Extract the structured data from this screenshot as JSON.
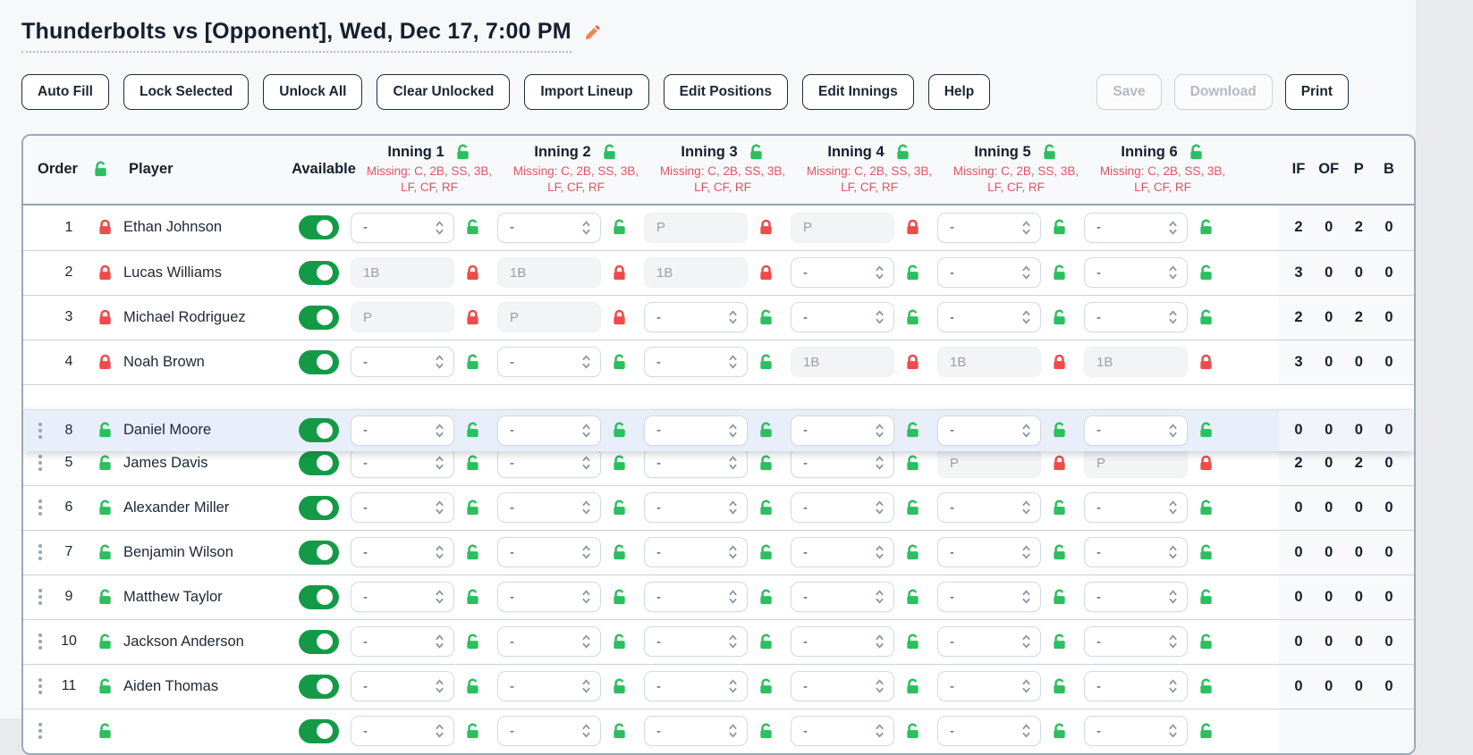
{
  "page": {
    "title": "Thunderbolts vs [Opponent], Wed, Dec 17, 7:00 PM"
  },
  "toolbar": {
    "left_buttons": [
      {
        "name": "auto-fill-button",
        "label": "Auto Fill"
      },
      {
        "name": "lock-selected-button",
        "label": "Lock Selected"
      },
      {
        "name": "unlock-all-button",
        "label": "Unlock All"
      },
      {
        "name": "clear-unlocked-button",
        "label": "Clear Unlocked"
      },
      {
        "name": "import-lineup-button",
        "label": "Import Lineup"
      },
      {
        "name": "edit-positions-button",
        "label": "Edit Positions"
      },
      {
        "name": "edit-innings-button",
        "label": "Edit Innings"
      },
      {
        "name": "help-button",
        "label": "Help"
      }
    ],
    "right_buttons": [
      {
        "name": "save-button",
        "label": "Save",
        "disabled": true
      },
      {
        "name": "download-button",
        "label": "Download",
        "disabled": true
      },
      {
        "name": "print-button",
        "label": "Print",
        "disabled": false
      }
    ]
  },
  "table": {
    "header": {
      "order": "Order",
      "player": "Player",
      "available": "Available",
      "stat_columns": [
        "IF",
        "OF",
        "P",
        "B"
      ],
      "innings": [
        {
          "label": "Inning 1",
          "missing": "Missing: C, 2B, SS, 3B,\nLF, CF, RF"
        },
        {
          "label": "Inning 2",
          "missing": "Missing: C, 2B, SS, 3B,\nLF, CF, RF"
        },
        {
          "label": "Inning 3",
          "missing": "Missing: C, 2B, SS, 3B,\nLF, CF, RF"
        },
        {
          "label": "Inning 4",
          "missing": "Missing: C, 2B, SS, 3B,\nLF, CF, RF"
        },
        {
          "label": "Inning 5",
          "missing": "Missing: C, 2B, SS, 3B,\nLF, CF, RF"
        },
        {
          "label": "Inning 6",
          "missing": "Missing: C, 2B, SS, 3B,\nLF, CF, RF"
        }
      ]
    },
    "rows": [
      {
        "order": "1",
        "name": "Ethan Johnson",
        "row_locked": true,
        "has_handle": false,
        "available": true,
        "innings": [
          {
            "type": "select",
            "value": "-",
            "locked": false
          },
          {
            "type": "select",
            "value": "-",
            "locked": false
          },
          {
            "type": "input",
            "value": "P",
            "locked": true
          },
          {
            "type": "input",
            "value": "P",
            "locked": true
          },
          {
            "type": "select",
            "value": "-",
            "locked": false
          },
          {
            "type": "select",
            "value": "-",
            "locked": false
          }
        ],
        "stats": [
          "2",
          "0",
          "2",
          "0"
        ]
      },
      {
        "order": "2",
        "name": "Lucas Williams",
        "row_locked": true,
        "has_handle": false,
        "available": true,
        "innings": [
          {
            "type": "input",
            "value": "1B",
            "locked": true
          },
          {
            "type": "input",
            "value": "1B",
            "locked": true
          },
          {
            "type": "input",
            "value": "1B",
            "locked": true
          },
          {
            "type": "select",
            "value": "-",
            "locked": false
          },
          {
            "type": "select",
            "value": "-",
            "locked": false
          },
          {
            "type": "select",
            "value": "-",
            "locked": false
          }
        ],
        "stats": [
          "3",
          "0",
          "0",
          "0"
        ]
      },
      {
        "order": "3",
        "name": "Michael Rodriguez",
        "row_locked": true,
        "has_handle": false,
        "available": true,
        "innings": [
          {
            "type": "input",
            "value": "P",
            "locked": true
          },
          {
            "type": "input",
            "value": "P",
            "locked": true
          },
          {
            "type": "select",
            "value": "-",
            "locked": false
          },
          {
            "type": "select",
            "value": "-",
            "locked": false
          },
          {
            "type": "select",
            "value": "-",
            "locked": false
          },
          {
            "type": "select",
            "value": "-",
            "locked": false
          }
        ],
        "stats": [
          "2",
          "0",
          "2",
          "0"
        ]
      },
      {
        "order": "4",
        "name": "Noah Brown",
        "row_locked": true,
        "has_handle": false,
        "available": true,
        "innings": [
          {
            "type": "select",
            "value": "-",
            "locked": false
          },
          {
            "type": "select",
            "value": "-",
            "locked": false
          },
          {
            "type": "select",
            "value": "-",
            "locked": false
          },
          {
            "type": "input",
            "value": "1B",
            "locked": true
          },
          {
            "type": "input",
            "value": "1B",
            "locked": true
          },
          {
            "type": "input",
            "value": "1B",
            "locked": true
          }
        ],
        "stats": [
          "3",
          "0",
          "0",
          "0"
        ]
      },
      {
        "order": "8",
        "name": "Daniel Moore",
        "row_locked": false,
        "has_handle": true,
        "available": true,
        "gap_before": true,
        "dragging": true,
        "innings": [
          {
            "type": "select",
            "value": "-",
            "locked": false
          },
          {
            "type": "select",
            "value": "-",
            "locked": false
          },
          {
            "type": "select",
            "value": "-",
            "locked": false
          },
          {
            "type": "select",
            "value": "-",
            "locked": false
          },
          {
            "type": "select",
            "value": "-",
            "locked": false
          },
          {
            "type": "select",
            "value": "-",
            "locked": false
          }
        ],
        "stats": [
          "0",
          "0",
          "0",
          "0"
        ]
      },
      {
        "order": "5",
        "name": "James Davis",
        "row_locked": false,
        "has_handle": true,
        "available": true,
        "innings": [
          {
            "type": "select",
            "value": "-",
            "locked": false
          },
          {
            "type": "select",
            "value": "-",
            "locked": false
          },
          {
            "type": "select",
            "value": "-",
            "locked": false
          },
          {
            "type": "select",
            "value": "-",
            "locked": false
          },
          {
            "type": "input",
            "value": "P",
            "locked": true
          },
          {
            "type": "input",
            "value": "P",
            "locked": true
          }
        ],
        "stats": [
          "2",
          "0",
          "2",
          "0"
        ]
      },
      {
        "order": "6",
        "name": "Alexander Miller",
        "row_locked": false,
        "has_handle": true,
        "available": true,
        "innings": [
          {
            "type": "select",
            "value": "-",
            "locked": false
          },
          {
            "type": "select",
            "value": "-",
            "locked": false
          },
          {
            "type": "select",
            "value": "-",
            "locked": false
          },
          {
            "type": "select",
            "value": "-",
            "locked": false
          },
          {
            "type": "select",
            "value": "-",
            "locked": false
          },
          {
            "type": "select",
            "value": "-",
            "locked": false
          }
        ],
        "stats": [
          "0",
          "0",
          "0",
          "0"
        ]
      },
      {
        "order": "7",
        "name": "Benjamin Wilson",
        "row_locked": false,
        "has_handle": true,
        "available": true,
        "innings": [
          {
            "type": "select",
            "value": "-",
            "locked": false
          },
          {
            "type": "select",
            "value": "-",
            "locked": false
          },
          {
            "type": "select",
            "value": "-",
            "locked": false
          },
          {
            "type": "select",
            "value": "-",
            "locked": false
          },
          {
            "type": "select",
            "value": "-",
            "locked": false
          },
          {
            "type": "select",
            "value": "-",
            "locked": false
          }
        ],
        "stats": [
          "0",
          "0",
          "0",
          "0"
        ]
      },
      {
        "order": "9",
        "name": "Matthew Taylor",
        "row_locked": false,
        "has_handle": true,
        "available": true,
        "innings": [
          {
            "type": "select",
            "value": "-",
            "locked": false
          },
          {
            "type": "select",
            "value": "-",
            "locked": false
          },
          {
            "type": "select",
            "value": "-",
            "locked": false
          },
          {
            "type": "select",
            "value": "-",
            "locked": false
          },
          {
            "type": "select",
            "value": "-",
            "locked": false
          },
          {
            "type": "select",
            "value": "-",
            "locked": false
          }
        ],
        "stats": [
          "0",
          "0",
          "0",
          "0"
        ]
      },
      {
        "order": "10",
        "name": "Jackson Anderson",
        "row_locked": false,
        "has_handle": true,
        "available": true,
        "innings": [
          {
            "type": "select",
            "value": "-",
            "locked": false
          },
          {
            "type": "select",
            "value": "-",
            "locked": false
          },
          {
            "type": "select",
            "value": "-",
            "locked": false
          },
          {
            "type": "select",
            "value": "-",
            "locked": false
          },
          {
            "type": "select",
            "value": "-",
            "locked": false
          },
          {
            "type": "select",
            "value": "-",
            "locked": false
          }
        ],
        "stats": [
          "0",
          "0",
          "0",
          "0"
        ]
      },
      {
        "order": "11",
        "name": "Aiden Thomas",
        "row_locked": false,
        "has_handle": true,
        "available": true,
        "innings": [
          {
            "type": "select",
            "value": "-",
            "locked": false
          },
          {
            "type": "select",
            "value": "-",
            "locked": false
          },
          {
            "type": "select",
            "value": "-",
            "locked": false
          },
          {
            "type": "select",
            "value": "-",
            "locked": false
          },
          {
            "type": "select",
            "value": "-",
            "locked": false
          },
          {
            "type": "select",
            "value": "-",
            "locked": false
          }
        ],
        "stats": [
          "0",
          "0",
          "0",
          "0"
        ]
      },
      {
        "order": "",
        "name": "",
        "row_locked": false,
        "has_handle": true,
        "available": true,
        "innings": [
          {
            "type": "select",
            "value": "-",
            "locked": false
          },
          {
            "type": "select",
            "value": "-",
            "locked": false
          },
          {
            "type": "select",
            "value": "-",
            "locked": false
          },
          {
            "type": "select",
            "value": "-",
            "locked": false
          },
          {
            "type": "select",
            "value": "-",
            "locked": false
          },
          {
            "type": "select",
            "value": "-",
            "locked": false
          }
        ],
        "stats": [
          "",
          "",
          "",
          ""
        ]
      }
    ]
  },
  "colors": {
    "toggle_green": "#149a47",
    "lock_green": "#2bbf5f",
    "lock_red": "#ef4b4b",
    "missing_red": "#e05562",
    "drag_highlight": "#e9eefb",
    "pencil_orange": "#f0874d"
  }
}
